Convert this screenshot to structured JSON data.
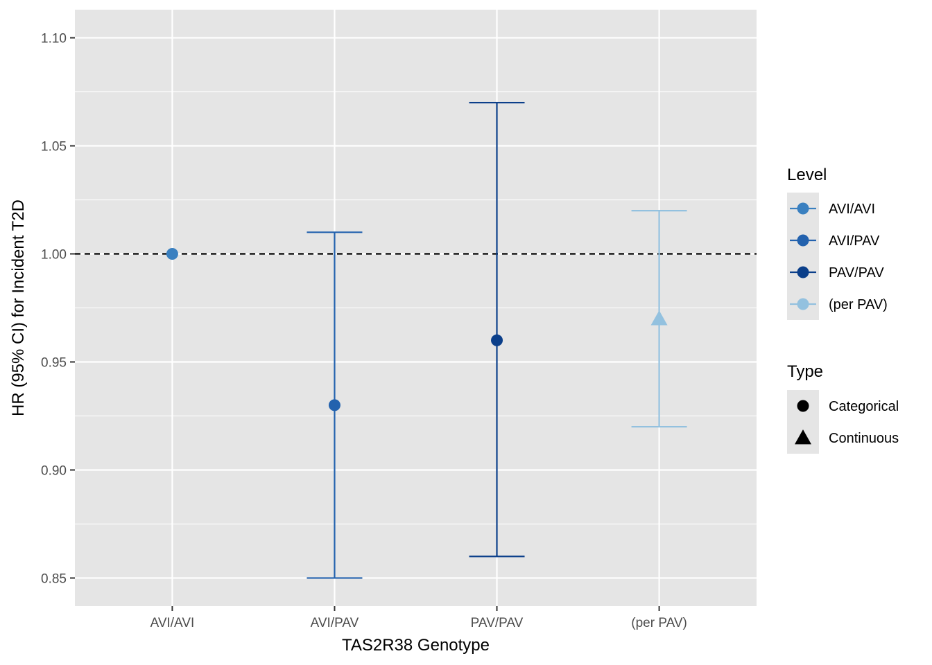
{
  "chart_data": {
    "type": "errorbar",
    "title": "",
    "xlabel": "TAS2R38 Genotype",
    "ylabel": "HR (95% CI) for Incident T2D",
    "ylim": [
      0.837,
      1.113
    ],
    "yticks": [
      0.85,
      0.9,
      0.95,
      1.0,
      1.05,
      1.1
    ],
    "ytick_labels": [
      "0.85",
      "0.90",
      "0.95",
      "1.00",
      "1.05",
      "1.10"
    ],
    "categories": [
      "AVI/AVI",
      "AVI/PAV",
      "PAV/PAV",
      "(per PAV)"
    ],
    "reference_line": 1.0,
    "grid": true,
    "points": [
      {
        "x": "AVI/AVI",
        "y": 1.0,
        "low": null,
        "high": null,
        "level": "AVI/AVI",
        "type": "Categorical"
      },
      {
        "x": "AVI/PAV",
        "y": 0.93,
        "low": 0.85,
        "high": 1.01,
        "level": "AVI/PAV",
        "type": "Categorical"
      },
      {
        "x": "PAV/PAV",
        "y": 0.96,
        "low": 0.86,
        "high": 1.07,
        "level": "PAV/PAV",
        "type": "Categorical"
      },
      {
        "x": "(per PAV)",
        "y": 0.97,
        "low": 0.92,
        "high": 1.02,
        "level": "(per PAV)",
        "type": "Continuous"
      }
    ],
    "legend": {
      "placement": "right",
      "level": {
        "title": "Level",
        "entries": [
          {
            "label": "AVI/AVI",
            "color": "#3a80c0"
          },
          {
            "label": "AVI/PAV",
            "color": "#2362ae"
          },
          {
            "label": "PAV/PAV",
            "color": "#0b3f8a"
          },
          {
            "label": "(per PAV)",
            "color": "#93c1df"
          }
        ]
      },
      "type": {
        "title": "Type",
        "entries": [
          {
            "label": "Categorical",
            "shape": "circle"
          },
          {
            "label": "Continuous",
            "shape": "triangle"
          }
        ]
      }
    },
    "colors": {
      "panel_background": "#e5e5e5",
      "grid": "#ffffff",
      "reference_line": "#000000"
    }
  }
}
